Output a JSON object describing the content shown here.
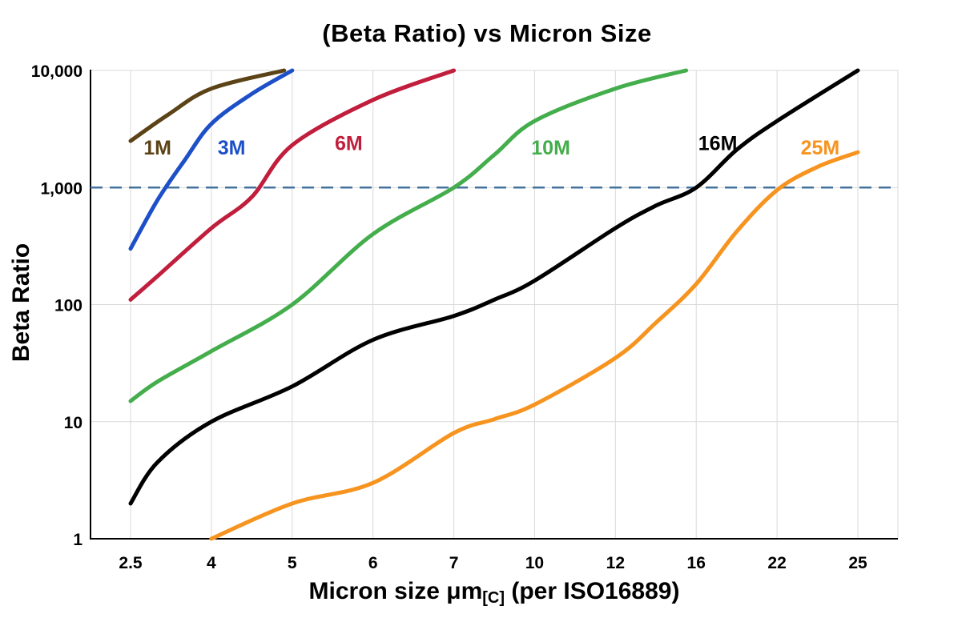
{
  "chart_data": {
    "type": "line",
    "title": "(Beta Ratio) vs Micron Size",
    "ylabel": "Beta Ratio",
    "xlabel_main": "Micron size μm",
    "xlabel_sub": "[C]",
    "xlabel_tail": " (per ISO16889)",
    "x_scale": "categorical",
    "y_scale": "log",
    "ylim": [
      1,
      10000
    ],
    "categories": [
      2.5,
      4,
      5,
      6,
      7,
      10,
      12,
      16,
      22,
      25
    ],
    "x_tick_labels": [
      "2.5",
      "4",
      "5",
      "6",
      "7",
      "10",
      "12",
      "16",
      "22",
      "25"
    ],
    "y_ticks": [
      1,
      10,
      100,
      1000,
      10000
    ],
    "y_tick_labels": [
      "1",
      "10",
      "100",
      "1,000",
      "10,000"
    ],
    "grid": true,
    "gridline_color": "#D9D9D9",
    "axis_color": "#000000",
    "reference_line": {
      "y": 1000,
      "color": "#44739E",
      "style": "dashed"
    },
    "series": [
      {
        "name": "1M",
        "color": "#5C4317",
        "label_pos": [
          3.0,
          2200
        ],
        "points": [
          [
            2.5,
            2500
          ],
          [
            3.2,
            4200
          ],
          [
            4,
            7000
          ],
          [
            4.9,
            10000
          ]
        ]
      },
      {
        "name": "3M",
        "color": "#1D50C8",
        "label_pos": [
          4.25,
          2200
        ],
        "points": [
          [
            2.5,
            300
          ],
          [
            3,
            780
          ],
          [
            3.5,
            1700
          ],
          [
            4,
            3500
          ],
          [
            4.5,
            6300
          ],
          [
            5,
            10000
          ]
        ]
      },
      {
        "name": "6M",
        "color": "#C01E3C",
        "label_pos": [
          5.7,
          2400
        ],
        "points": [
          [
            2.5,
            110
          ],
          [
            3,
            175
          ],
          [
            4,
            450
          ],
          [
            4.5,
            830
          ],
          [
            5,
            2300
          ],
          [
            6,
            5600
          ],
          [
            7,
            10000
          ]
        ]
      },
      {
        "name": "10M",
        "color": "#44AD4C",
        "label_pos": [
          10.4,
          2200
        ],
        "points": [
          [
            2.5,
            15
          ],
          [
            3,
            22
          ],
          [
            4,
            40
          ],
          [
            5,
            100
          ],
          [
            6,
            400
          ],
          [
            7,
            1000
          ],
          [
            8.5,
            1900
          ],
          [
            10,
            3700
          ],
          [
            12,
            7000
          ],
          [
            15.5,
            10000
          ]
        ]
      },
      {
        "name": "16M",
        "color": "#000000",
        "label_pos": [
          17.6,
          2400
        ],
        "points": [
          [
            2.5,
            2
          ],
          [
            3,
            4.5
          ],
          [
            4,
            10
          ],
          [
            5,
            20
          ],
          [
            6,
            50
          ],
          [
            7,
            80
          ],
          [
            8.5,
            110
          ],
          [
            10,
            160
          ],
          [
            12,
            450
          ],
          [
            14,
            700
          ],
          [
            16,
            1000
          ],
          [
            19,
            2100
          ],
          [
            22,
            3700
          ],
          [
            25,
            10000
          ]
        ]
      },
      {
        "name": "25M",
        "color": "#F79420",
        "label_pos": [
          23.6,
          2200
        ],
        "points": [
          [
            4,
            1
          ],
          [
            5,
            2
          ],
          [
            6,
            3
          ],
          [
            7,
            8
          ],
          [
            8.5,
            10.5
          ],
          [
            10,
            14
          ],
          [
            12,
            35
          ],
          [
            14,
            70
          ],
          [
            16,
            150
          ],
          [
            19,
            420
          ],
          [
            22,
            950
          ],
          [
            23.5,
            1500
          ],
          [
            25,
            2000
          ]
        ]
      }
    ]
  }
}
